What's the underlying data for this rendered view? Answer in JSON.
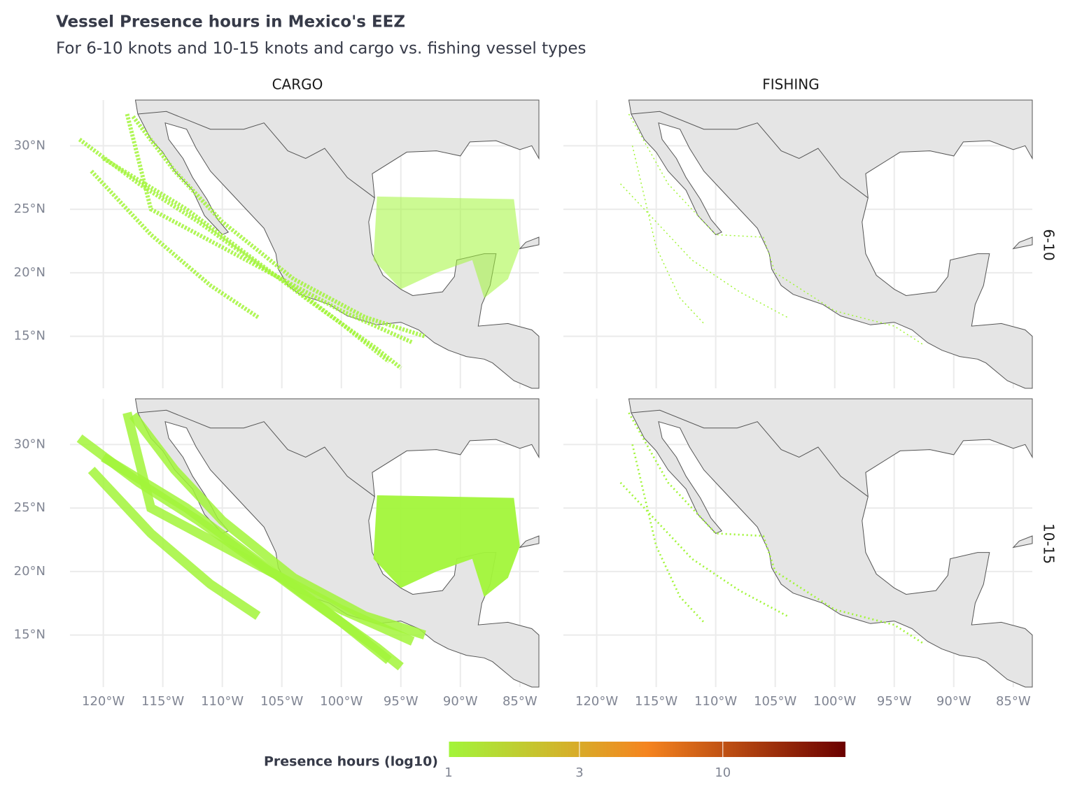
{
  "chart_data": {
    "type": "map",
    "title": "Vessel Presence hours in Mexico's EEZ",
    "subtitle": "For 6-10 knots and 10-15 knots and cargo vs. fishing vessel types",
    "columns": [
      "CARGO",
      "FISHING"
    ],
    "rows": [
      "6-10",
      "10-15"
    ],
    "xlim": [
      -122.8,
      -83.4
    ],
    "ylim": [
      10.9,
      33.6
    ],
    "xticks": [
      {
        "value": -120,
        "label": "120°W"
      },
      {
        "value": -115,
        "label": "115°W"
      },
      {
        "value": -110,
        "label": "110°W"
      },
      {
        "value": -105,
        "label": "105°W"
      },
      {
        "value": -100,
        "label": "100°W"
      },
      {
        "value": -95,
        "label": "95°W"
      },
      {
        "value": -90,
        "label": "90°W"
      },
      {
        "value": -85,
        "label": "85°W"
      }
    ],
    "yticks": [
      {
        "value": 15,
        "label": "15°N"
      },
      {
        "value": 20,
        "label": "20°N"
      },
      {
        "value": 25,
        "label": "25°N"
      },
      {
        "value": 30,
        "label": "30°N"
      }
    ],
    "grid": true,
    "legend": {
      "title": "Presence hours (log10)",
      "scale": "log",
      "range": [
        1,
        28
      ],
      "ticks": [
        1,
        3,
        10
      ],
      "colors": [
        "#a2f53a",
        "#f5841f",
        "#6b0000"
      ]
    }
  }
}
